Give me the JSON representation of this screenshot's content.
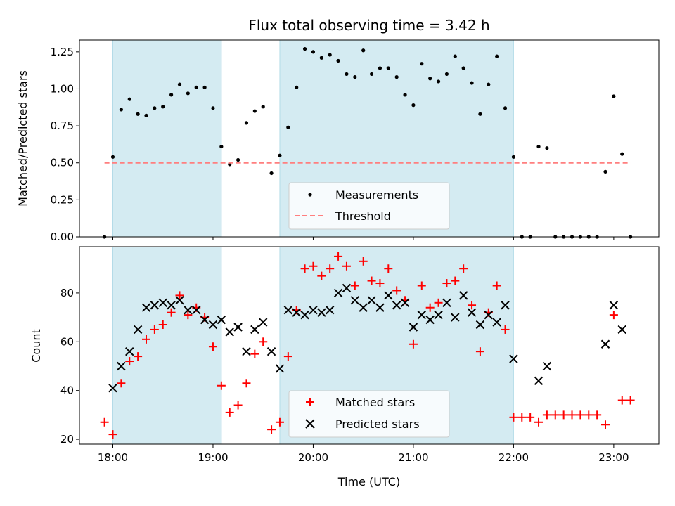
{
  "chart_data": [
    {
      "type": "scatter",
      "title": "Flux total observing time = 3.42 h",
      "xlabel": "",
      "ylabel": "Matched/Predicted stars",
      "xlim": [
        "17:40",
        "23:27"
      ],
      "ylim": [
        0,
        1.33
      ],
      "yticks": [
        0.0,
        0.25,
        0.5,
        0.75,
        1.0,
        1.25
      ],
      "ytick_labels": [
        "0.00",
        "0.25",
        "0.50",
        "0.75",
        "1.00",
        "1.25"
      ],
      "xticks": [
        "18:00",
        "19:00",
        "20:00",
        "21:00",
        "22:00",
        "23:00"
      ],
      "grid": false,
      "legend_position": "lower-center",
      "shaded_intervals": [
        [
          "18:00",
          "19:05"
        ],
        [
          "19:40",
          "22:00"
        ]
      ],
      "shade_color": "#add8e6",
      "series": [
        {
          "name": "Measurements",
          "marker": "dot",
          "color": "#000000",
          "x": [
            "17:55",
            "18:00",
            "18:05",
            "18:10",
            "18:15",
            "18:20",
            "18:25",
            "18:30",
            "18:35",
            "18:40",
            "18:45",
            "18:50",
            "18:55",
            "19:00",
            "19:05",
            "19:10",
            "19:15",
            "19:20",
            "19:25",
            "19:30",
            "19:35",
            "19:40",
            "19:45",
            "19:50",
            "19:55",
            "20:00",
            "20:05",
            "20:10",
            "20:15",
            "20:20",
            "20:25",
            "20:30",
            "20:35",
            "20:40",
            "20:45",
            "20:50",
            "20:55",
            "21:00",
            "21:05",
            "21:10",
            "21:15",
            "21:20",
            "21:25",
            "21:30",
            "21:35",
            "21:40",
            "21:45",
            "21:50",
            "21:55",
            "22:00",
            "22:05",
            "22:10",
            "22:15",
            "22:20",
            "22:25",
            "22:30",
            "22:35",
            "22:40",
            "22:45",
            "22:50",
            "22:55",
            "23:00",
            "23:05",
            "23:10"
          ],
          "y": [
            0.0,
            0.54,
            0.86,
            0.93,
            0.83,
            0.82,
            0.87,
            0.88,
            0.96,
            1.03,
            0.97,
            1.01,
            1.01,
            0.87,
            0.61,
            0.49,
            0.52,
            0.77,
            0.85,
            0.88,
            0.43,
            0.55,
            0.74,
            1.01,
            1.27,
            1.25,
            1.21,
            1.23,
            1.19,
            1.1,
            1.08,
            1.26,
            1.1,
            1.14,
            1.14,
            1.08,
            0.96,
            0.89,
            1.17,
            1.07,
            1.05,
            1.1,
            1.22,
            1.14,
            1.04,
            0.83,
            1.03,
            1.22,
            0.87,
            0.54,
            0.0,
            0.0,
            0.61,
            0.6,
            0.0,
            0.0,
            0.0,
            0.0,
            0.0,
            0.0,
            0.44,
            0.95,
            0.56,
            0.0
          ]
        },
        {
          "name": "Threshold",
          "marker": "dashed-line",
          "color": "#ff7f7f",
          "x": [
            "17:55",
            "23:10"
          ],
          "y": [
            0.5,
            0.5
          ]
        }
      ]
    },
    {
      "type": "scatter",
      "title": "",
      "xlabel": "Time (UTC)",
      "ylabel": "Count",
      "xlim": [
        "17:40",
        "23:27"
      ],
      "ylim": [
        18,
        99
      ],
      "yticks": [
        20,
        40,
        60,
        80
      ],
      "ytick_labels": [
        "20",
        "40",
        "60",
        "80"
      ],
      "xticks": [
        "18:00",
        "19:00",
        "20:00",
        "21:00",
        "22:00",
        "23:00"
      ],
      "xtick_labels": [
        "18:00",
        "19:00",
        "20:00",
        "21:00",
        "22:00",
        "23:00"
      ],
      "grid": false,
      "legend_position": "lower-center",
      "shaded_intervals": [
        [
          "18:00",
          "19:05"
        ],
        [
          "19:40",
          "22:00"
        ]
      ],
      "shade_color": "#add8e6",
      "series": [
        {
          "name": "Matched stars",
          "marker": "plus",
          "color": "#ff0000",
          "x": [
            "17:55",
            "18:00",
            "18:05",
            "18:10",
            "18:15",
            "18:20",
            "18:25",
            "18:30",
            "18:35",
            "18:40",
            "18:45",
            "18:50",
            "18:55",
            "19:00",
            "19:05",
            "19:10",
            "19:15",
            "19:20",
            "19:25",
            "19:30",
            "19:35",
            "19:40",
            "19:45",
            "19:50",
            "19:55",
            "20:00",
            "20:05",
            "20:10",
            "20:15",
            "20:20",
            "20:25",
            "20:30",
            "20:35",
            "20:40",
            "20:45",
            "20:50",
            "20:55",
            "21:00",
            "21:05",
            "21:10",
            "21:15",
            "21:20",
            "21:25",
            "21:30",
            "21:35",
            "21:40",
            "21:45",
            "21:50",
            "21:55",
            "22:00",
            "22:05",
            "22:10",
            "22:15",
            "22:20",
            "22:25",
            "22:30",
            "22:35",
            "22:40",
            "22:45",
            "22:50",
            "22:55",
            "23:00",
            "23:05",
            "23:10"
          ],
          "y": [
            27,
            22,
            43,
            52,
            54,
            61,
            65,
            67,
            72,
            79,
            71,
            74,
            70,
            58,
            42,
            31,
            34,
            43,
            55,
            60,
            24,
            27,
            54,
            73,
            90,
            91,
            87,
            90,
            95,
            91,
            83,
            93,
            85,
            84,
            90,
            81,
            77,
            59,
            83,
            74,
            76,
            84,
            85,
            90,
            75,
            56,
            72,
            83,
            65,
            29,
            29,
            29,
            27,
            30,
            30,
            30,
            30,
            30,
            30,
            30,
            26,
            71,
            36,
            36
          ]
        },
        {
          "name": "Predicted stars",
          "marker": "x",
          "color": "#000000",
          "x": [
            "18:00",
            "18:05",
            "18:10",
            "18:15",
            "18:20",
            "18:25",
            "18:30",
            "18:35",
            "18:40",
            "18:45",
            "18:50",
            "18:55",
            "19:00",
            "19:05",
            "19:10",
            "19:15",
            "19:20",
            "19:25",
            "19:30",
            "19:35",
            "19:40",
            "19:45",
            "19:50",
            "19:55",
            "20:00",
            "20:05",
            "20:10",
            "20:15",
            "20:20",
            "20:25",
            "20:30",
            "20:35",
            "20:40",
            "20:45",
            "20:50",
            "20:55",
            "21:00",
            "21:05",
            "21:10",
            "21:15",
            "21:20",
            "21:25",
            "21:30",
            "21:35",
            "21:40",
            "21:45",
            "21:50",
            "21:55",
            "22:00",
            "22:15",
            "22:20",
            "22:55",
            "23:00",
            "23:05"
          ],
          "y": [
            41,
            50,
            56,
            65,
            74,
            75,
            76,
            75,
            77,
            73,
            73,
            69,
            67,
            69,
            64,
            66,
            56,
            65,
            68,
            56,
            49,
            73,
            72,
            71,
            73,
            72,
            73,
            80,
            82,
            77,
            74,
            77,
            74,
            79,
            75,
            76,
            66,
            71,
            69,
            71,
            76,
            70,
            79,
            72,
            67,
            71,
            68,
            75,
            53,
            44,
            50,
            59,
            75,
            65
          ]
        }
      ]
    }
  ]
}
